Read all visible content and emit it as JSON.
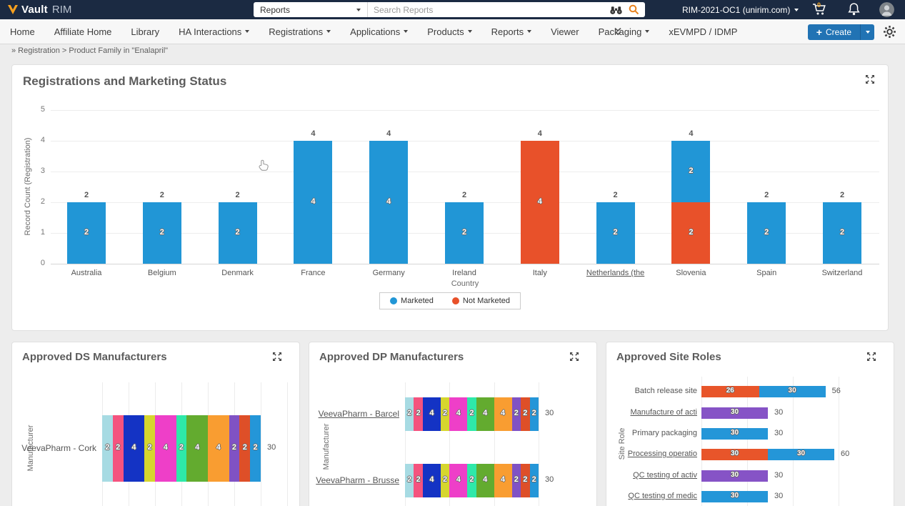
{
  "topbar": {
    "brand_vault": "Vault",
    "brand_rim": "RIM",
    "scope": "Reports",
    "search_placeholder": "Search Reports",
    "account": "RIM-2021-OC1 (unirim.com)",
    "cart_count": "0"
  },
  "nav": {
    "items": [
      {
        "label": "Home",
        "caret": false
      },
      {
        "label": "Affiliate Home",
        "caret": false
      },
      {
        "label": "Library",
        "caret": false
      },
      {
        "label": "HA Interactions",
        "caret": true
      },
      {
        "label": "Registrations",
        "caret": true
      },
      {
        "label": "Applications",
        "caret": true
      },
      {
        "label": "Products",
        "caret": true
      },
      {
        "label": "Reports",
        "caret": true
      },
      {
        "label": "Viewer",
        "caret": false
      },
      {
        "label": "Packaging",
        "caret": true
      },
      {
        "label": "xEVMPD / IDMP",
        "caret": false
      }
    ],
    "create_label": "Create"
  },
  "breadcrumb": "» Registration > Product Family in \"Enalapril\"",
  "colors": {
    "topbar_bg": "#1b2a42",
    "create_button": "#2173b4",
    "search_icon": "#e8821e",
    "marketed_blue": "#2196d6",
    "not_marketed_orange": "#e8512a"
  },
  "chart_data": [
    {
      "type": "bar",
      "title": "Registrations and Marketing Status",
      "xlabel": "Country",
      "ylabel": "Record Count (Registration)",
      "ylim": [
        0,
        5
      ],
      "yticks": [
        0,
        1,
        2,
        3,
        4,
        5
      ],
      "grid": true,
      "legend_position": "bottom",
      "categories": [
        "Australia",
        "Belgium",
        "Denmark",
        "France",
        "Germany",
        "Ireland",
        "Italy",
        "Netherlands (the",
        "Slovenia",
        "Spain",
        "Switzerland"
      ],
      "underlined_categories": [
        "Netherlands (the"
      ],
      "series": [
        {
          "name": "Marketed",
          "color": "#2196d6",
          "values": [
            2,
            2,
            2,
            4,
            4,
            2,
            0,
            2,
            2,
            2,
            2
          ]
        },
        {
          "name": "Not Marketed",
          "color": "#e8512a",
          "values": [
            0,
            0,
            0,
            0,
            0,
            0,
            4,
            0,
            2,
            0,
            0
          ]
        }
      ],
      "totals": [
        2,
        2,
        2,
        4,
        4,
        2,
        4,
        2,
        4,
        2,
        2
      ]
    },
    {
      "type": "bar",
      "orientation": "horizontal",
      "stacked": true,
      "title": "Approved DS Manufacturers",
      "ylabel": "Manufacturer",
      "xmax": 35,
      "categories": [
        "VeevaPharm - Cork"
      ],
      "underlined": [
        false
      ],
      "palette": [
        "#a7dbe3",
        "#f4537e",
        "#1433c4",
        "#d6d62e",
        "#ee3fc8",
        "#2ee9a9",
        "#63ab2f",
        "#f99d31",
        "#8052c4",
        "#de4f28",
        "#2496d8"
      ],
      "segment_values": [
        [
          2,
          2,
          4,
          2,
          4,
          2,
          4,
          4,
          2,
          2,
          2
        ]
      ],
      "totals": [
        30
      ]
    },
    {
      "type": "bar",
      "orientation": "horizontal",
      "stacked": true,
      "title": "Approved DP Manufacturers",
      "ylabel": "Manufacturer",
      "xmax": 30,
      "categories": [
        "VeevaPharm - Barcel",
        "VeevaPharm - Brusse"
      ],
      "underlined": [
        true,
        true
      ],
      "palette": [
        "#a7dbe3",
        "#f4537e",
        "#1433c4",
        "#d6d62e",
        "#ee3fc8",
        "#2ee9a9",
        "#63ab2f",
        "#f99d31",
        "#8052c4",
        "#de4f28",
        "#2496d8"
      ],
      "segment_values": [
        [
          2,
          2,
          4,
          2,
          4,
          2,
          4,
          4,
          2,
          2,
          2
        ],
        [
          2,
          2,
          4,
          2,
          4,
          2,
          4,
          4,
          2,
          2,
          2
        ]
      ],
      "totals": [
        30,
        30
      ]
    },
    {
      "type": "bar",
      "orientation": "horizontal",
      "stacked": true,
      "title": "Approved Site Roles",
      "ylabel": "Site Role",
      "xmax": 60,
      "rows": [
        {
          "label": "Batch release site",
          "underlined": false,
          "segments": [
            {
              "value": 26,
              "color": "#e8552a"
            },
            {
              "value": 30,
              "color": "#2496d8"
            }
          ],
          "total": 56
        },
        {
          "label": "Manufacture of acti",
          "underlined": true,
          "segments": [
            {
              "value": 30,
              "color": "#8653c6"
            }
          ],
          "total": 30
        },
        {
          "label": "Primary packaging",
          "underlined": false,
          "segments": [
            {
              "value": 30,
              "color": "#2496d8"
            }
          ],
          "total": 30
        },
        {
          "label": "Processing operatio",
          "underlined": true,
          "segments": [
            {
              "value": 30,
              "color": "#e8552a"
            },
            {
              "value": 30,
              "color": "#2496d8"
            }
          ],
          "total": 60
        },
        {
          "label": "QC testing of activ",
          "underlined": true,
          "segments": [
            {
              "value": 30,
              "color": "#8653c6"
            }
          ],
          "total": 30
        },
        {
          "label": "QC testing of medic",
          "underlined": true,
          "segments": [
            {
              "value": 30,
              "color": "#2496d8"
            }
          ],
          "total": 30
        }
      ]
    }
  ]
}
